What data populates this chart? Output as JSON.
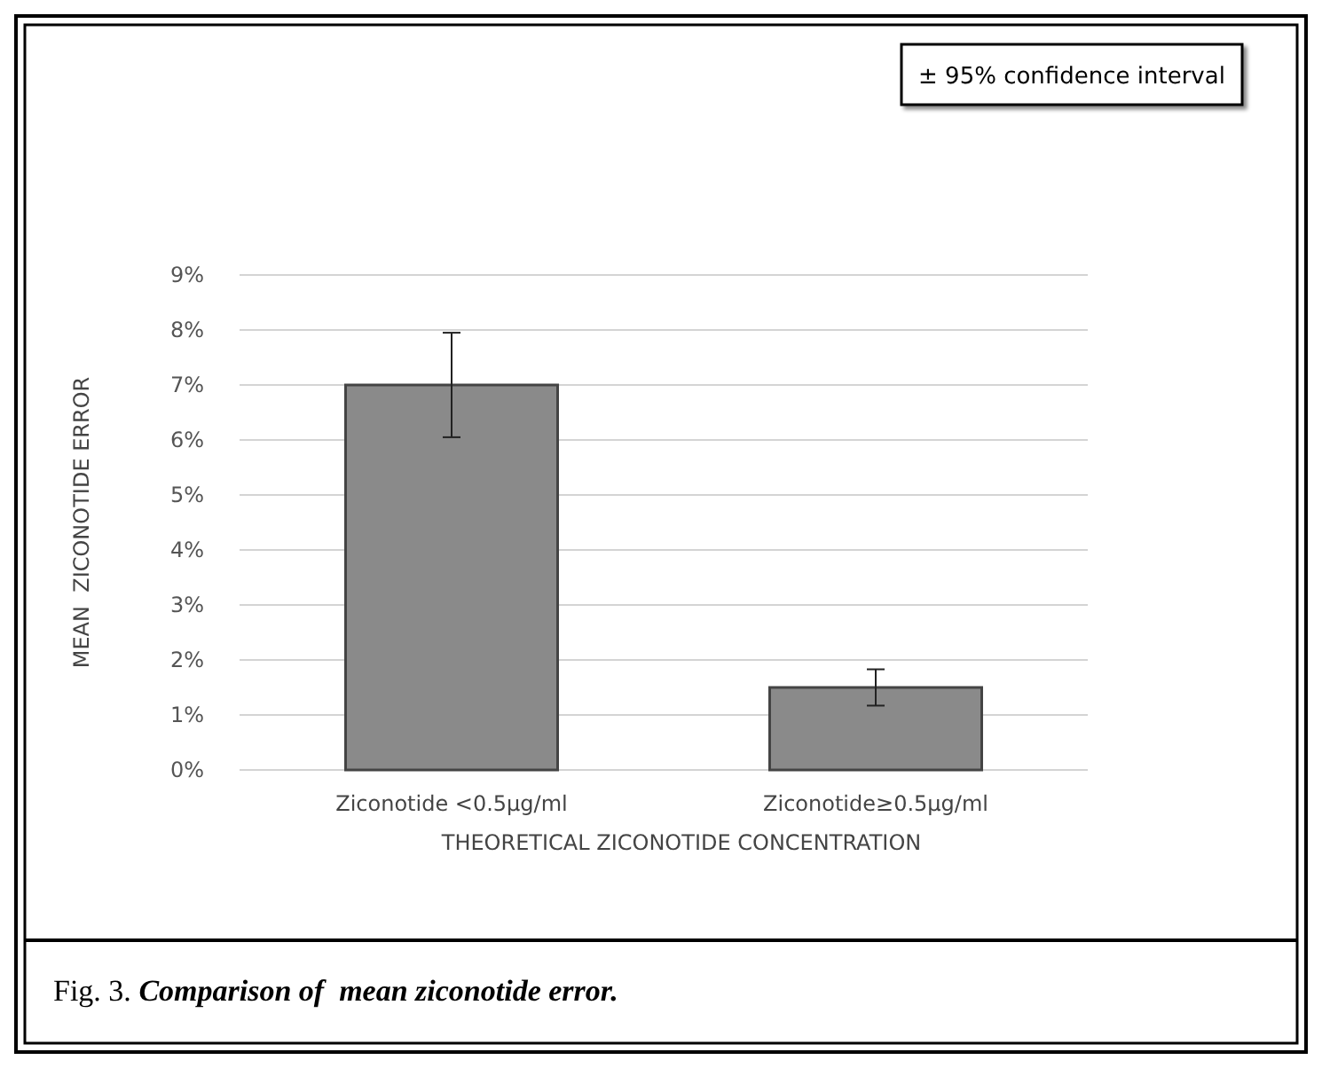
{
  "chart_data": {
    "type": "bar",
    "categories": [
      "Ziconotide <0.5µg/ml",
      "Ziconotide≥0.5µg/ml"
    ],
    "values": [
      7.0,
      1.5
    ],
    "errors": [
      0.95,
      0.33
    ],
    "color": "#8a8a8a",
    "xlabel": "THEORETICAL ZICONOTIDE CONCENTRATION",
    "ylabel": "MEAN  ZICONOTIDE ERROR",
    "ylim": [
      0,
      9
    ],
    "yticks": [
      {
        "value": 0,
        "label": "0%"
      },
      {
        "value": 1,
        "label": "1%"
      },
      {
        "value": 2,
        "label": "2%"
      },
      {
        "value": 3,
        "label": "3%"
      },
      {
        "value": 4,
        "label": "4%"
      },
      {
        "value": 5,
        "label": "5%"
      },
      {
        "value": 6,
        "label": "6%"
      },
      {
        "value": 7,
        "label": "7%"
      },
      {
        "value": 8,
        "label": "8%"
      },
      {
        "value": 9,
        "label": "9%"
      }
    ],
    "grid": "y",
    "legend": false,
    "annotations": [
      "± 95% confidence interval",
      "Fig. 3. Comparison of  mean ziconotide error."
    ]
  }
}
